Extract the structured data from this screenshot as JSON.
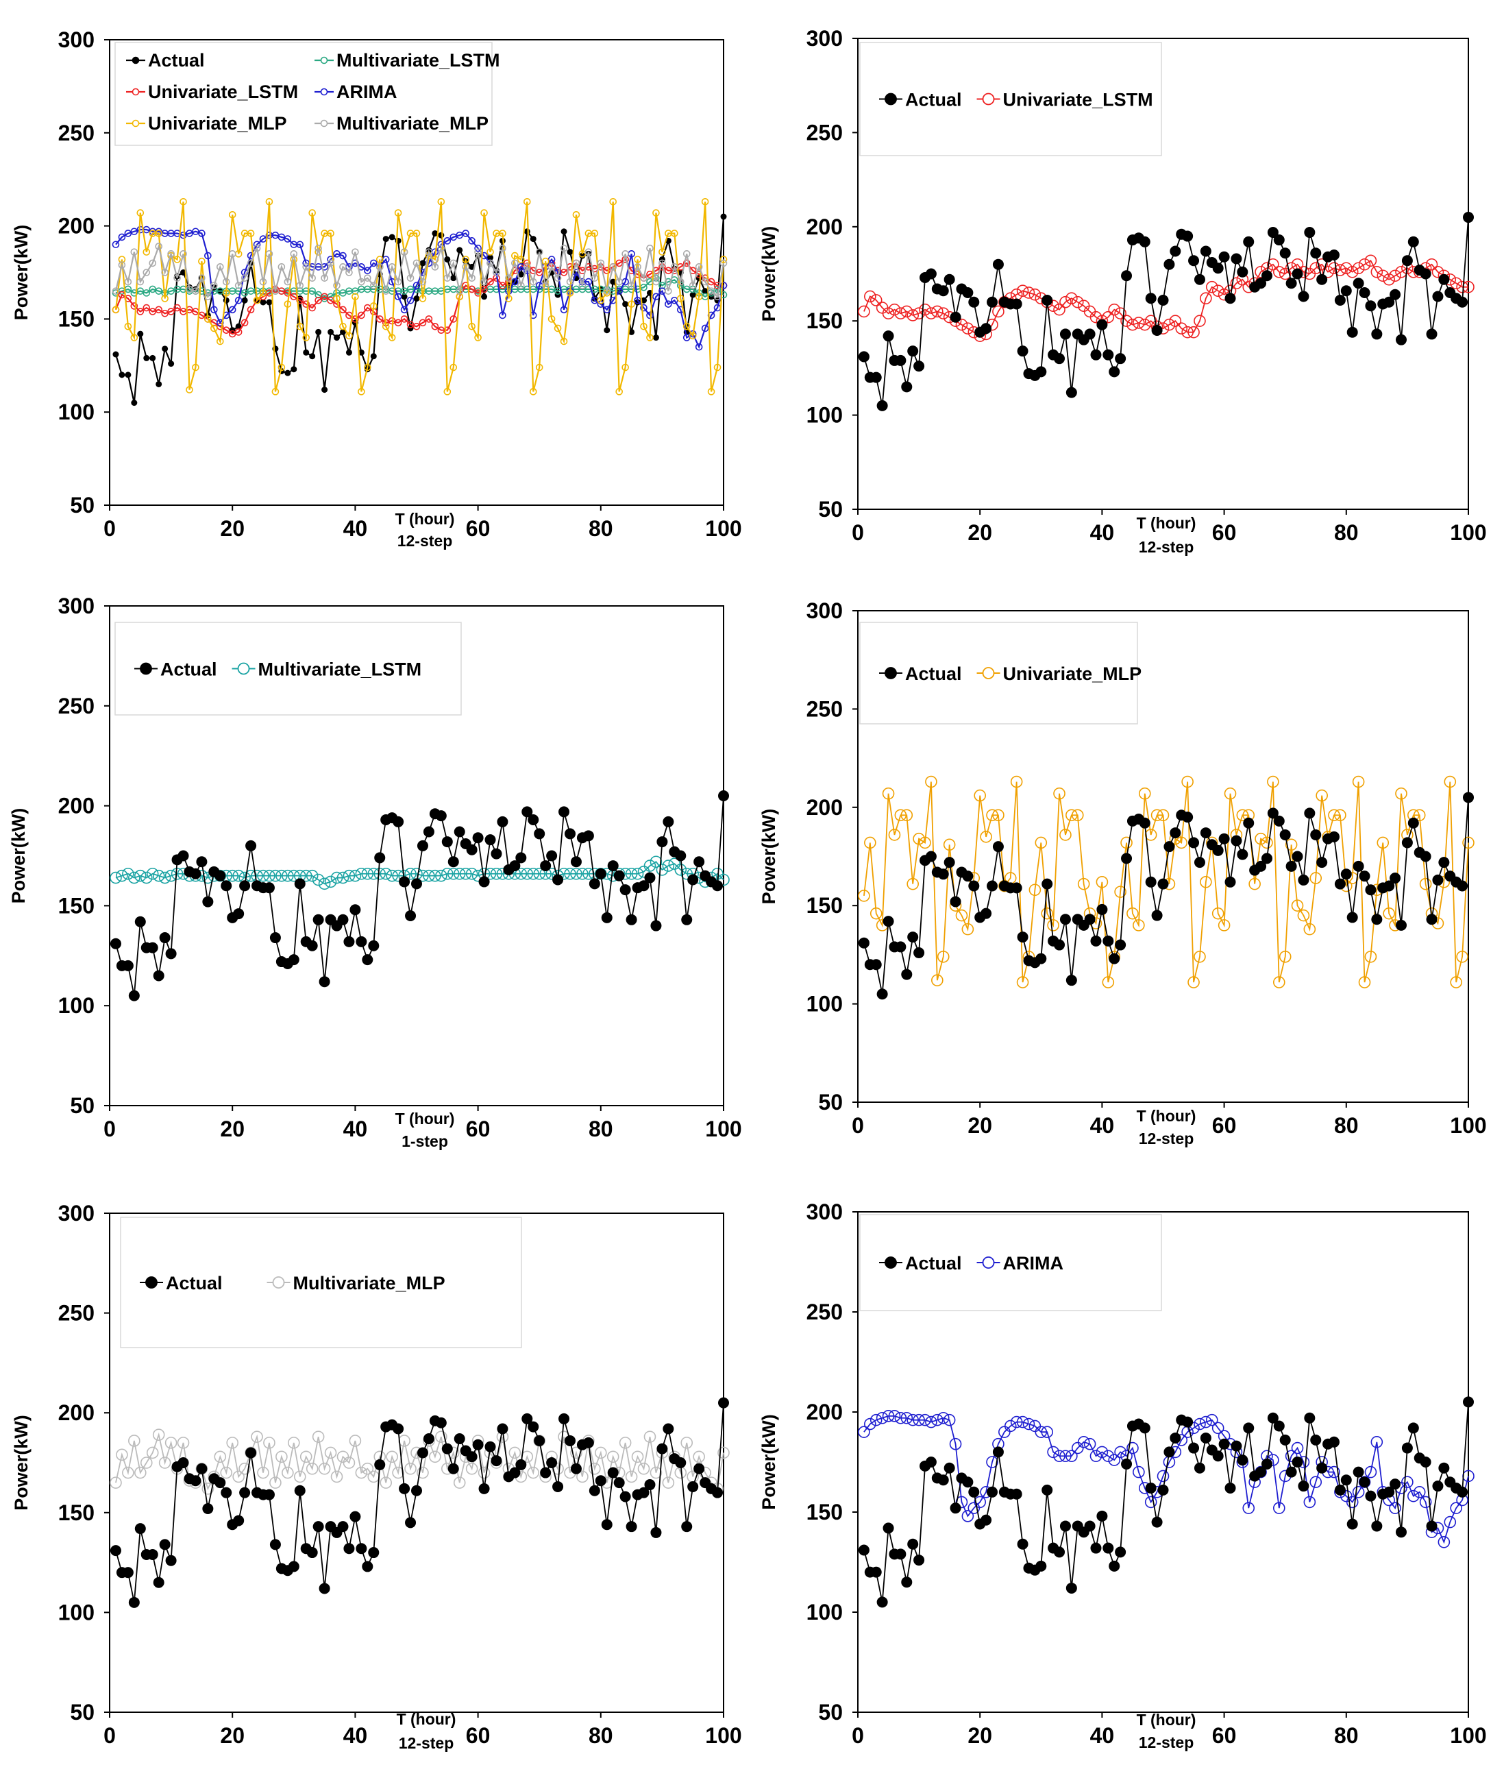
{
  "chart_data": [
    {
      "type": "line",
      "panel": "combined-forecasts",
      "xlabel": "T (hour)",
      "xlabel_sub": "12-step",
      "ylabel": "Power(kW)",
      "xlim": [
        0,
        100
      ],
      "ylim": [
        50,
        300
      ],
      "xticks": [
        0,
        20,
        40,
        60,
        80,
        100
      ],
      "yticks": [
        50,
        100,
        150,
        200,
        250,
        300
      ],
      "legend_position": "top-left",
      "legend_columns": 2,
      "series": [
        {
          "name": "Actual",
          "color": "#000000",
          "marker": "filled-small",
          "ref": "actual"
        },
        {
          "name": "Multivariate_LSTM",
          "color": "#2aa882",
          "marker": "open-small",
          "ref": "mlstm"
        },
        {
          "name": "Univariate_LSTM",
          "color": "#ee2222",
          "marker": "open-small",
          "ref": "ulstm"
        },
        {
          "name": "ARIMA",
          "color": "#1f1fd0",
          "marker": "open-small",
          "ref": "arima"
        },
        {
          "name": "Univariate_MLP",
          "color": "#f2b800",
          "marker": "open-small",
          "ref": "umlp"
        },
        {
          "name": "Multivariate_MLP",
          "color": "#aaaaaa",
          "marker": "open-small",
          "ref": "mmlp"
        }
      ]
    },
    {
      "type": "line",
      "panel": "univariate-lstm",
      "xlabel": "T (hour)",
      "xlabel_sub": "12-step",
      "ylabel": "Power(kW)",
      "xlim": [
        0,
        100
      ],
      "ylim": [
        50,
        300
      ],
      "xticks": [
        0,
        20,
        40,
        60,
        80,
        100
      ],
      "yticks": [
        50,
        100,
        150,
        200,
        250,
        300
      ],
      "legend_position": "top-left",
      "series": [
        {
          "name": "Actual",
          "color": "#000000",
          "marker": "filled",
          "ref": "actual"
        },
        {
          "name": "Univariate_LSTM",
          "color": "#ee2222",
          "marker": "open",
          "ref": "ulstm"
        }
      ]
    },
    {
      "type": "line",
      "panel": "multivariate-lstm",
      "xlabel": "T (hour)",
      "xlabel_sub": "1-step",
      "ylabel": "Power(kW)",
      "xlim": [
        0,
        100
      ],
      "ylim": [
        50,
        300
      ],
      "xticks": [
        0,
        20,
        40,
        60,
        80,
        100
      ],
      "yticks": [
        50,
        100,
        150,
        200,
        250,
        300
      ],
      "legend_position": "top-left",
      "series": [
        {
          "name": "Actual",
          "color": "#000000",
          "marker": "filled",
          "ref": "actual"
        },
        {
          "name": "Multivariate_LSTM",
          "color": "#1aa3a3",
          "marker": "open",
          "ref": "mlstm"
        }
      ]
    },
    {
      "type": "line",
      "panel": "univariate-mlp",
      "xlabel": "T (hour)",
      "xlabel_sub": "12-step",
      "ylabel": "Power(kW)",
      "xlim": [
        0,
        100
      ],
      "ylim": [
        50,
        300
      ],
      "xticks": [
        0,
        20,
        40,
        60,
        80,
        100
      ],
      "yticks": [
        50,
        100,
        150,
        200,
        250,
        300
      ],
      "legend_position": "top-left",
      "series": [
        {
          "name": "Actual",
          "color": "#000000",
          "marker": "filled",
          "ref": "actual"
        },
        {
          "name": "Univariate_MLP",
          "color": "#f0a000",
          "marker": "open",
          "ref": "umlp"
        }
      ]
    },
    {
      "type": "line",
      "panel": "multivariate-mlp",
      "xlabel": "T (hour)",
      "xlabel_sub": "12-step",
      "ylabel": "Power(kW)",
      "xlim": [
        0,
        100
      ],
      "ylim": [
        50,
        300
      ],
      "xticks": [
        0,
        20,
        40,
        60,
        80,
        100
      ],
      "yticks": [
        50,
        100,
        150,
        200,
        250,
        300
      ],
      "legend_position": "top-left",
      "series": [
        {
          "name": "Actual",
          "color": "#000000",
          "marker": "filled",
          "ref": "actual"
        },
        {
          "name": "Multivariate_MLP",
          "color": "#bbbbbb",
          "marker": "open",
          "ref": "mmlp"
        }
      ]
    },
    {
      "type": "line",
      "panel": "arima",
      "xlabel": "T (hour)",
      "xlabel_sub": "12-step",
      "ylabel": "Power(kW)",
      "xlim": [
        0,
        100
      ],
      "ylim": [
        50,
        300
      ],
      "xticks": [
        0,
        20,
        40,
        60,
        80,
        100
      ],
      "yticks": [
        50,
        100,
        150,
        200,
        250,
        300
      ],
      "legend_position": "top-left",
      "series": [
        {
          "name": "Actual",
          "color": "#000000",
          "marker": "filled",
          "ref": "actual"
        },
        {
          "name": "ARIMA",
          "color": "#1f1fd0",
          "marker": "open",
          "ref": "arima"
        }
      ]
    }
  ],
  "series_values": {
    "x": [
      1,
      2,
      3,
      4,
      5,
      6,
      7,
      8,
      9,
      10,
      11,
      12,
      13,
      14,
      15,
      16,
      17,
      18,
      19,
      20,
      21,
      22,
      23,
      24,
      25,
      26,
      27,
      28,
      29,
      30,
      31,
      32,
      33,
      34,
      35,
      36,
      37,
      38,
      39,
      40,
      41,
      42,
      43,
      44,
      45,
      46,
      47,
      48,
      49,
      50,
      51,
      52,
      53,
      54,
      55,
      56,
      57,
      58,
      59,
      60,
      61,
      62,
      63,
      64,
      65,
      66,
      67,
      68,
      69,
      70,
      71,
      72,
      73,
      74,
      75,
      76,
      77,
      78,
      79,
      80,
      81,
      82,
      83,
      84,
      85,
      86,
      87,
      88,
      89,
      90,
      91,
      92,
      93,
      94,
      95,
      96,
      97,
      98,
      99,
      100
    ],
    "actual": [
      131,
      120,
      120,
      105,
      142,
      129,
      129,
      115,
      134,
      126,
      173,
      175,
      167,
      166,
      172,
      152,
      167,
      165,
      160,
      144,
      146,
      160,
      180,
      160,
      159,
      159,
      134,
      122,
      121,
      123,
      161,
      132,
      130,
      143,
      112,
      143,
      140,
      143,
      132,
      148,
      132,
      123,
      130,
      174,
      193,
      194,
      192,
      162,
      145,
      161,
      180,
      187,
      196,
      195,
      182,
      172,
      187,
      181,
      178,
      184,
      162,
      183,
      176,
      192,
      168,
      170,
      174,
      197,
      193,
      186,
      170,
      175,
      163,
      197,
      186,
      172,
      184,
      185,
      161,
      166,
      144,
      170,
      165,
      158,
      143,
      159,
      160,
      164,
      140,
      182,
      192,
      177,
      175,
      143,
      163,
      172,
      165,
      162,
      160,
      205
    ],
    "ulstm": [
      155,
      163,
      161,
      157,
      154,
      156,
      154,
      155,
      153,
      154,
      156,
      154,
      155,
      154,
      152,
      150,
      148,
      146,
      144,
      142,
      143,
      148,
      155,
      160,
      162,
      164,
      166,
      165,
      164,
      162,
      160,
      158,
      156,
      160,
      162,
      160,
      158,
      155,
      152,
      150,
      152,
      156,
      154,
      150,
      148,
      149,
      148,
      150,
      147,
      146,
      148,
      150,
      146,
      144,
      144,
      150,
      162,
      168,
      166,
      164,
      166,
      170,
      172,
      168,
      170,
      176,
      178,
      180,
      176,
      175,
      178,
      180,
      176,
      175,
      178,
      180,
      176,
      178,
      177,
      178,
      176,
      178,
      180,
      182,
      176,
      174,
      172,
      174,
      176,
      178,
      176,
      176,
      178,
      180,
      176,
      174,
      172,
      170,
      168,
      168
    ],
    "mlstm": [
      164,
      165,
      166,
      164,
      165,
      164,
      166,
      165,
      164,
      165,
      166,
      166,
      165,
      165,
      165,
      164,
      165,
      165,
      165,
      165,
      165,
      164,
      165,
      165,
      165,
      165,
      165,
      165,
      165,
      165,
      165,
      165,
      165,
      163,
      161,
      162,
      164,
      164,
      165,
      165,
      166,
      166,
      166,
      166,
      166,
      165,
      165,
      165,
      166,
      166,
      165,
      165,
      165,
      165,
      166,
      166,
      166,
      166,
      166,
      165,
      166,
      166,
      166,
      166,
      166,
      166,
      166,
      166,
      166,
      166,
      166,
      166,
      165,
      166,
      166,
      166,
      166,
      166,
      166,
      166,
      166,
      165,
      166,
      166,
      166,
      166,
      167,
      170,
      172,
      168,
      170,
      171,
      168,
      166,
      166,
      164,
      162,
      164,
      166,
      163
    ],
    "umlp": [
      155,
      182,
      146,
      140,
      207,
      186,
      196,
      196,
      161,
      184,
      182,
      213,
      112,
      124,
      181,
      150,
      145,
      138,
      164,
      206,
      185,
      196,
      196,
      160,
      164,
      213,
      111,
      124,
      158,
      182,
      146,
      140,
      207,
      186,
      196,
      196,
      161,
      146,
      141,
      162,
      111,
      124,
      157,
      182,
      146,
      140,
      207,
      186,
      196,
      196,
      161,
      184,
      182,
      213,
      111,
      124,
      162,
      182,
      146,
      140,
      207,
      186,
      196,
      196,
      161,
      184,
      182,
      213,
      111,
      124,
      181,
      150,
      145,
      138,
      164,
      206,
      185,
      196,
      196,
      160,
      164,
      213,
      111,
      124,
      158,
      182,
      146,
      140,
      207,
      186,
      196,
      196,
      161,
      146,
      141,
      162,
      213,
      111,
      124,
      182
    ],
    "mmlp": [
      165,
      179,
      170,
      186,
      170,
      175,
      180,
      189,
      175,
      185,
      172,
      185,
      166,
      165,
      172,
      162,
      168,
      178,
      170,
      185,
      168,
      172,
      180,
      188,
      170,
      185,
      165,
      178,
      170,
      185,
      168,
      178,
      172,
      188,
      172,
      180,
      168,
      178,
      175,
      186,
      170,
      172,
      168,
      178,
      165,
      178,
      170,
      186,
      172,
      180,
      170,
      186,
      178,
      188,
      172,
      180,
      165,
      178,
      172,
      186,
      170,
      180,
      175,
      188,
      172,
      180,
      168,
      178,
      170,
      186,
      168,
      178,
      172,
      188,
      170,
      180,
      168,
      186,
      172,
      180,
      165,
      178,
      170,
      185,
      168,
      178,
      172,
      188,
      170,
      180,
      165,
      178,
      170,
      185,
      168,
      178,
      170,
      165,
      162,
      180
    ],
    "arima": [
      190,
      194,
      196,
      197,
      198,
      198,
      197,
      197,
      196,
      196,
      196,
      195,
      196,
      197,
      196,
      184,
      155,
      148,
      152,
      155,
      160,
      175,
      184,
      190,
      193,
      195,
      195,
      194,
      193,
      190,
      190,
      180,
      178,
      178,
      178,
      182,
      185,
      184,
      178,
      180,
      178,
      176,
      180,
      178,
      182,
      170,
      162,
      155,
      160,
      168,
      175,
      180,
      186,
      190,
      192,
      194,
      195,
      196,
      192,
      188,
      184,
      180,
      175,
      152,
      165,
      170,
      178,
      176,
      152,
      168,
      178,
      182,
      175,
      155,
      165,
      175,
      170,
      170,
      160,
      158,
      155,
      160,
      165,
      170,
      185,
      160,
      156,
      152,
      162,
      165,
      158,
      160,
      155,
      140,
      142,
      135,
      145,
      152,
      156,
      168
    ]
  }
}
